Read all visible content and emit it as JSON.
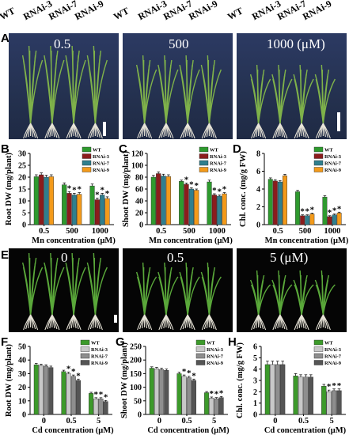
{
  "top_genotypes": [
    "WT",
    "RNAi-3",
    "RNAi-7",
    "RNAi-9",
    "WT",
    "RNAi-3",
    "RNAi-7",
    "RNAi-9",
    "WT",
    "RNAi-3",
    "RNAi-7",
    "RNAi-9"
  ],
  "panel_letters": {
    "A": "A",
    "B": "B",
    "C": "C",
    "D": "D",
    "E": "E",
    "F": "F",
    "G": "G",
    "H": "H"
  },
  "photos_A": {
    "labels": [
      "0.5",
      "500",
      "1000 (μM)"
    ]
  },
  "photos_E": {
    "labels": [
      "0",
      "0.5",
      "5 (μM)"
    ]
  },
  "colors": {
    "mn": {
      "WT": "#2e9a2e",
      "RNAi-3": "#8b1c1c",
      "RNAi-7": "#2f7f8e",
      "RNAi-9": "#f39a1a"
    },
    "cd": {
      "WT": "#3c9a2a",
      "RNAi-3": "#c8c8c8",
      "RNAi-7": "#8e8e8e",
      "RNAi-9": "#555555"
    }
  },
  "chart_data": [
    {
      "id": "B",
      "type": "bar",
      "ylabel": "Root DW (mg/plant)",
      "xlabel": "Mn concentration (μM)",
      "categories": [
        "0.5",
        "500",
        "1000"
      ],
      "ylim": [
        0,
        30
      ],
      "yticks": [
        0,
        5,
        10,
        15,
        20,
        25,
        30
      ],
      "series": [
        {
          "name": "WT",
          "values": [
            20.2,
            16.8,
            16.3
          ],
          "err": [
            0.8,
            0.8,
            0.8
          ],
          "star": [
            false,
            false,
            false
          ]
        },
        {
          "name": "RNAi-3",
          "values": [
            21.0,
            13.2,
            10.5
          ],
          "err": [
            0.8,
            0.7,
            0.7
          ],
          "star": [
            false,
            true,
            true
          ]
        },
        {
          "name": "RNAi-7",
          "values": [
            20.0,
            12.5,
            12.5
          ],
          "err": [
            0.8,
            0.7,
            0.7
          ],
          "star": [
            false,
            true,
            true
          ]
        },
        {
          "name": "RNAi-9",
          "values": [
            20.2,
            12.8,
            11.0
          ],
          "err": [
            0.8,
            0.7,
            0.7
          ],
          "star": [
            false,
            true,
            true
          ]
        }
      ],
      "legend": [
        "WT",
        "RNAi-3",
        "RNAi-7",
        "RNAi-9"
      ]
    },
    {
      "id": "C",
      "type": "bar",
      "ylabel": "Shoot DW (mg/plant)",
      "xlabel": "Mn concentration (μM)",
      "categories": [
        "0.5",
        "500",
        "1000"
      ],
      "ylim": [
        0,
        120
      ],
      "yticks": [
        0,
        20,
        40,
        60,
        80,
        100,
        120
      ],
      "series": [
        {
          "name": "WT",
          "values": [
            80,
            73,
            72
          ],
          "err": [
            3,
            2,
            3
          ],
          "star": [
            false,
            false,
            false
          ]
        },
        {
          "name": "RNAi-3",
          "values": [
            86,
            68,
            50
          ],
          "err": [
            3,
            2,
            2
          ],
          "star": [
            false,
            true,
            true
          ]
        },
        {
          "name": "RNAi-7",
          "values": [
            82,
            60,
            48
          ],
          "err": [
            3,
            2,
            2
          ],
          "star": [
            false,
            true,
            true
          ]
        },
        {
          "name": "RNAi-9",
          "values": [
            81,
            58,
            52
          ],
          "err": [
            3,
            2,
            2
          ],
          "star": [
            false,
            true,
            true
          ]
        }
      ],
      "legend": [
        "WT",
        "RNAi-3",
        "RNAi-7",
        "RNAi-9"
      ]
    },
    {
      "id": "D",
      "type": "bar",
      "ylabel": "Chl. conc. (mg/g FW)",
      "xlabel": "Mn concentration (μM)",
      "categories": [
        "0.5",
        "500",
        "1000"
      ],
      "ylim": [
        0,
        8
      ],
      "yticks": [
        0,
        2,
        4,
        6,
        8
      ],
      "series": [
        {
          "name": "WT",
          "values": [
            5.1,
            3.7,
            3.1
          ],
          "err": [
            0.15,
            0.15,
            0.15
          ],
          "star": [
            false,
            false,
            false
          ]
        },
        {
          "name": "RNAi-3",
          "values": [
            4.9,
            1.0,
            0.9
          ],
          "err": [
            0.15,
            0.1,
            0.1
          ],
          "star": [
            false,
            true,
            true
          ]
        },
        {
          "name": "RNAi-7",
          "values": [
            4.8,
            1.0,
            1.1
          ],
          "err": [
            0.15,
            0.1,
            0.1
          ],
          "star": [
            false,
            true,
            true
          ]
        },
        {
          "name": "RNAi-9",
          "values": [
            5.5,
            1.2,
            1.3
          ],
          "err": [
            0.15,
            0.1,
            0.1
          ],
          "star": [
            false,
            true,
            true
          ]
        }
      ],
      "legend": [
        "WT",
        "RNAi-3",
        "RNAi-7",
        "RNAi-9"
      ]
    },
    {
      "id": "F",
      "type": "bar",
      "ylabel": "Root DW (mg/plant)",
      "xlabel": "Cd concentration (μM)",
      "categories": [
        "0",
        "0.5",
        "5"
      ],
      "ylim": [
        0,
        50
      ],
      "yticks": [
        0,
        10,
        20,
        30,
        40,
        50
      ],
      "series": [
        {
          "name": "WT",
          "values": [
            36.5,
            31.5,
            15.5
          ],
          "err": [
            1,
            1,
            0.8
          ],
          "star": [
            false,
            false,
            false
          ]
        },
        {
          "name": "RNAi-3",
          "values": [
            36.0,
            30.0,
            11.5
          ],
          "err": [
            1,
            1,
            0.8
          ],
          "star": [
            false,
            true,
            true
          ]
        },
        {
          "name": "RNAi-7",
          "values": [
            35.5,
            28.0,
            11.5
          ],
          "err": [
            1,
            1,
            0.8
          ],
          "star": [
            false,
            true,
            true
          ]
        },
        {
          "name": "RNAi-9",
          "values": [
            34.5,
            25.0,
            9.5
          ],
          "err": [
            1,
            1,
            0.8
          ],
          "star": [
            false,
            true,
            true
          ]
        }
      ],
      "legend": [
        "WT",
        "RNAi-3",
        "RNAi-7",
        "RNAi-9"
      ]
    },
    {
      "id": "G",
      "type": "bar",
      "ylabel": "Shoot DW (mg/plant)",
      "xlabel": "Cd concentration (μM)",
      "categories": [
        "0",
        "0.5",
        "5"
      ],
      "ylim": [
        0,
        250
      ],
      "yticks": [
        0,
        50,
        100,
        150,
        200,
        250
      ],
      "series": [
        {
          "name": "WT",
          "values": [
            170,
            150,
            80
          ],
          "err": [
            5,
            5,
            4
          ],
          "star": [
            false,
            false,
            false
          ]
        },
        {
          "name": "RNAi-3",
          "values": [
            168,
            140,
            60
          ],
          "err": [
            5,
            5,
            4
          ],
          "star": [
            false,
            true,
            true
          ]
        },
        {
          "name": "RNAi-7",
          "values": [
            165,
            135,
            58
          ],
          "err": [
            5,
            5,
            4
          ],
          "star": [
            false,
            true,
            true
          ]
        },
        {
          "name": "RNAi-9",
          "values": [
            162,
            125,
            62
          ],
          "err": [
            5,
            5,
            4
          ],
          "star": [
            false,
            true,
            true
          ]
        }
      ],
      "legend": [
        "WT",
        "RNAi-3",
        "RNAi-7",
        "RNAi-9"
      ]
    },
    {
      "id": "H",
      "type": "bar",
      "ylabel": "Chl. conc. (mg/g FW)",
      "xlabel": "Cd concentration (μM)",
      "categories": [
        "0",
        "0.5",
        "5"
      ],
      "ylim": [
        0,
        6
      ],
      "yticks": [
        0,
        1,
        2,
        3,
        4,
        5,
        6
      ],
      "series": [
        {
          "name": "WT",
          "values": [
            4.4,
            3.4,
            2.5
          ],
          "err": [
            0.3,
            0.2,
            0.15
          ],
          "star": [
            false,
            false,
            false
          ]
        },
        {
          "name": "RNAi-3",
          "values": [
            4.4,
            3.3,
            2.0
          ],
          "err": [
            0.3,
            0.2,
            0.15
          ],
          "star": [
            false,
            false,
            true
          ]
        },
        {
          "name": "RNAi-7",
          "values": [
            4.4,
            3.3,
            2.1
          ],
          "err": [
            0.3,
            0.2,
            0.15
          ],
          "star": [
            false,
            false,
            true
          ]
        },
        {
          "name": "RNAi-9",
          "values": [
            4.4,
            3.3,
            2.1
          ],
          "err": [
            0.3,
            0.2,
            0.15
          ],
          "star": [
            false,
            false,
            true
          ]
        }
      ],
      "legend": [
        "WT",
        "RNAi-3",
        "RNAi-7",
        "RNAi-9"
      ]
    }
  ]
}
